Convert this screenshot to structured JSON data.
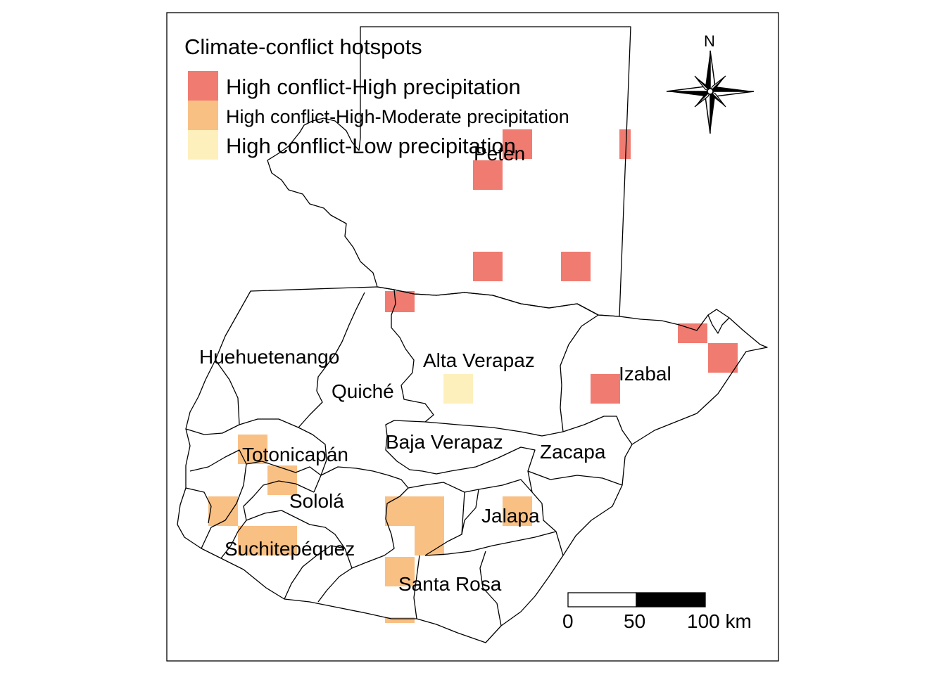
{
  "legend": {
    "title": "Climate-conflict hotspots",
    "items": [
      {
        "label": "High conflict-High precipitation",
        "color": "#f07b71"
      },
      {
        "label": "High conflict-High-Moderate precipitation",
        "color": "#f9c084"
      },
      {
        "label": "High conflict-Low precipitation",
        "color": "#fdf0bc"
      }
    ]
  },
  "map_labels": {
    "peten": "Peten",
    "huehuetenango": "Huehuetenango",
    "alta_verapaz": "Alta Verapaz",
    "izabal": "Izabal",
    "quiche": "Quiché",
    "baja_verapaz": "Baja Verapaz",
    "zacapa": "Zacapa",
    "totonicapan": "Totonicapán",
    "solola": "Sololá",
    "jalapa": "Jalapa",
    "suchitepequez": "Suchitepéquez",
    "santa_rosa": "Santa Rosa"
  },
  "north_arrow": {
    "label": "N",
    "icon": "compass-rose-icon"
  },
  "scale_bar": {
    "ticks": [
      "0",
      "50",
      "100 km"
    ]
  },
  "hotspots": {
    "high_high": "High conflict-High precipitation",
    "high_moderate": "High conflict-High-Moderate precipitation",
    "high_low": "High conflict-Low precipitation"
  }
}
